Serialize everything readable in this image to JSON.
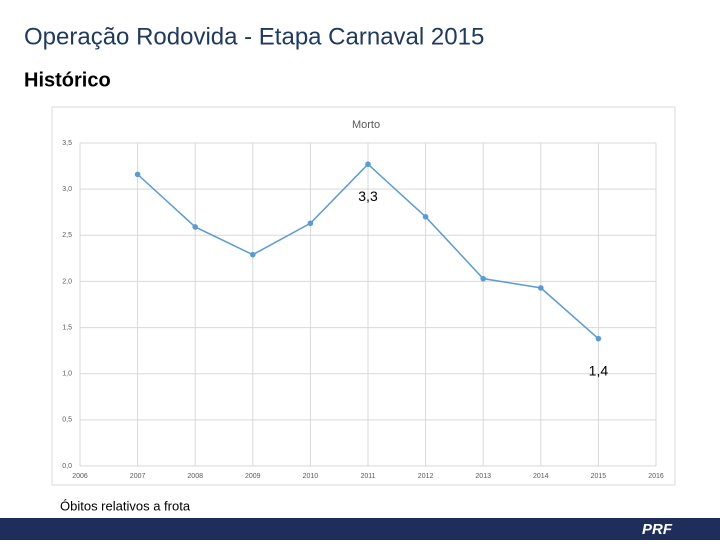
{
  "header": {
    "title": "Operação Rodovida - Etapa Carnaval 2015",
    "subtitle": "Histórico"
  },
  "chart_data": {
    "type": "line",
    "title": "Morto",
    "x": [
      2007,
      2008,
      2009,
      2010,
      2011,
      2012,
      2013,
      2014,
      2015
    ],
    "series": [
      {
        "name": "Morto",
        "color": "#5b9bd5",
        "values": [
          3.16,
          2.59,
          2.29,
          2.63,
          3.27,
          2.7,
          2.03,
          1.93,
          1.38
        ],
        "value_labels": [
          null,
          null,
          null,
          null,
          "3,3",
          null,
          null,
          null,
          "1,4"
        ]
      }
    ],
    "xlim": [
      2006,
      2016
    ],
    "xticks": [
      2006,
      2007,
      2008,
      2009,
      2010,
      2011,
      2012,
      2013,
      2014,
      2015,
      2016
    ],
    "ylim": [
      0,
      3.5
    ],
    "yticks": [
      {
        "value": 0,
        "label": "0,0"
      },
      {
        "value": 0.5,
        "label": "0,5"
      },
      {
        "value": 1,
        "label": "1,0"
      },
      {
        "value": 1.5,
        "label": "1,5"
      },
      {
        "value": 2,
        "label": "2,0"
      },
      {
        "value": 2.5,
        "label": "2,5"
      },
      {
        "value": 3,
        "label": "3,0"
      },
      {
        "value": 3.5,
        "label": "3,5"
      }
    ],
    "grid": true
  },
  "caption": "Óbitos relativos a frota",
  "footer": {
    "logo": "PRF"
  }
}
